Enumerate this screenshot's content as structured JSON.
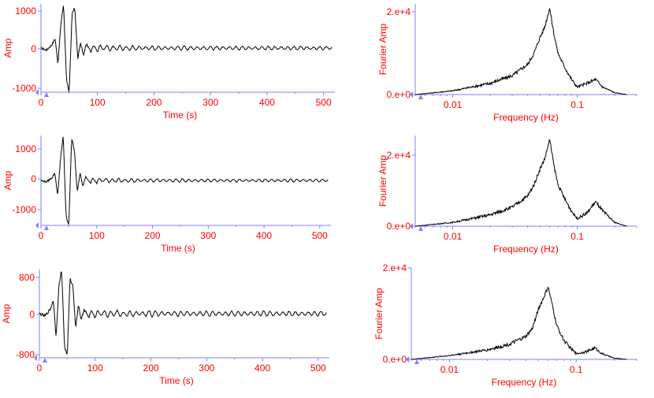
{
  "colors": {
    "axis": "#7f7fff",
    "label": "#ff0000",
    "trace": "#000000",
    "marker": "#8080ff"
  },
  "chart_data": [
    {
      "type": "line",
      "panel": "seismogram",
      "xlabel": "Time (s)",
      "ylabel": "Amp",
      "xlim": [
        0,
        520
      ],
      "ylim": [
        -1150,
        1150
      ],
      "xticks": [
        "0",
        "100",
        "200",
        "300",
        "400",
        "500"
      ],
      "yticks": [
        "1000",
        "0",
        "-1000"
      ],
      "x": [
        0,
        10,
        20,
        25,
        30,
        35,
        40,
        45,
        50,
        55,
        60,
        65,
        70,
        75,
        80,
        90,
        100,
        120,
        140,
        160,
        200,
        250,
        300,
        350,
        400,
        450,
        500,
        515
      ],
      "values": [
        0,
        -50,
        100,
        250,
        -400,
        600,
        1150,
        -800,
        -1150,
        900,
        1050,
        -300,
        150,
        -200,
        100,
        -100,
        80,
        -60,
        50,
        -40,
        30,
        -30,
        25,
        -20,
        20,
        -20,
        20,
        0
      ]
    },
    {
      "type": "line",
      "panel": "spectrum",
      "xlabel": "Frequency (Hz)",
      "ylabel": "Fourier Amp",
      "xscale": "log",
      "xlim": [
        0.005,
        0.3
      ],
      "ylim": [
        0,
        24000
      ],
      "xticks": [
        "0.01",
        "0.1"
      ],
      "yticks": [
        "2.e+4",
        "0.e+0"
      ],
      "x": [
        0.005,
        0.01,
        0.02,
        0.03,
        0.04,
        0.045,
        0.05,
        0.055,
        0.06,
        0.065,
        0.07,
        0.08,
        0.09,
        0.1,
        0.12,
        0.14,
        0.16,
        0.2,
        0.25
      ],
      "values": [
        0,
        1000,
        3000,
        5000,
        8000,
        11000,
        15000,
        18000,
        23000,
        16000,
        11000,
        7000,
        4000,
        2000,
        3000,
        4000,
        2000,
        500,
        0
      ]
    },
    {
      "type": "line",
      "panel": "seismogram",
      "xlabel": "Time (s)",
      "ylabel": "Amp",
      "xlim": [
        0,
        520
      ],
      "ylim": [
        -1500,
        1500
      ],
      "xticks": [
        "0",
        "100",
        "200",
        "300",
        "400",
        "500"
      ],
      "yticks": [
        "1000",
        "0",
        "-1000"
      ],
      "x": [
        0,
        10,
        20,
        25,
        30,
        35,
        40,
        45,
        50,
        55,
        60,
        65,
        70,
        75,
        80,
        90,
        100,
        120,
        140,
        160,
        200,
        250,
        300,
        350,
        400,
        450,
        500,
        515
      ],
      "values": [
        0,
        -50,
        100,
        250,
        -500,
        700,
        1500,
        -1200,
        -1500,
        1400,
        1000,
        -400,
        250,
        -200,
        150,
        -100,
        80,
        -60,
        50,
        -40,
        30,
        -30,
        25,
        -20,
        20,
        -20,
        20,
        0
      ]
    },
    {
      "type": "line",
      "panel": "spectrum",
      "xlabel": "Frequency (Hz)",
      "ylabel": "Fourier Amp",
      "xscale": "log",
      "xlim": [
        0.005,
        0.3
      ],
      "ylim": [
        0,
        24000
      ],
      "xticks": [
        "0.01",
        "0.1"
      ],
      "yticks": [
        "2.e+4",
        "0.e+0"
      ],
      "x": [
        0.005,
        0.01,
        0.02,
        0.03,
        0.04,
        0.045,
        0.05,
        0.055,
        0.06,
        0.065,
        0.07,
        0.08,
        0.09,
        0.1,
        0.12,
        0.14,
        0.16,
        0.2,
        0.25
      ],
      "values": [
        0,
        1000,
        3000,
        5000,
        8000,
        11000,
        15000,
        18000,
        23000,
        16000,
        11000,
        7000,
        4000,
        2000,
        3500,
        6500,
        4000,
        1000,
        0
      ]
    },
    {
      "type": "line",
      "panel": "seismogram",
      "xlabel": "Time (s)",
      "ylabel": "Amp",
      "xlim": [
        0,
        520
      ],
      "ylim": [
        -950,
        950
      ],
      "xticks": [
        "0",
        "100",
        "200",
        "300",
        "400",
        "500"
      ],
      "yticks": [
        "800",
        "0",
        "-800"
      ],
      "x": [
        0,
        10,
        20,
        25,
        30,
        35,
        40,
        45,
        50,
        55,
        60,
        65,
        70,
        75,
        80,
        90,
        100,
        120,
        140,
        160,
        200,
        250,
        300,
        350,
        400,
        450,
        500,
        515
      ],
      "values": [
        0,
        -50,
        100,
        300,
        -500,
        600,
        950,
        -700,
        -900,
        750,
        600,
        -300,
        200,
        -150,
        100,
        -80,
        60,
        -60,
        50,
        -40,
        40,
        -30,
        30,
        -30,
        30,
        -20,
        20,
        0
      ]
    },
    {
      "type": "line",
      "panel": "spectrum",
      "xlabel": "Frequency (Hz)",
      "ylabel": "Fourier Amp",
      "xscale": "log",
      "xlim": [
        0.005,
        0.3
      ],
      "ylim": [
        0,
        24000
      ],
      "xticks": [
        "0.01",
        "0.1"
      ],
      "yticks": [
        "2.e+4",
        "0.e+0"
      ],
      "x": [
        0.005,
        0.01,
        0.02,
        0.03,
        0.04,
        0.045,
        0.05,
        0.055,
        0.06,
        0.065,
        0.07,
        0.08,
        0.09,
        0.1,
        0.12,
        0.14,
        0.16,
        0.2,
        0.25
      ],
      "values": [
        0,
        1000,
        2500,
        4000,
        6000,
        8000,
        13000,
        16000,
        19000,
        14000,
        9000,
        5000,
        3000,
        1500,
        2000,
        3000,
        1500,
        300,
        0
      ]
    }
  ]
}
